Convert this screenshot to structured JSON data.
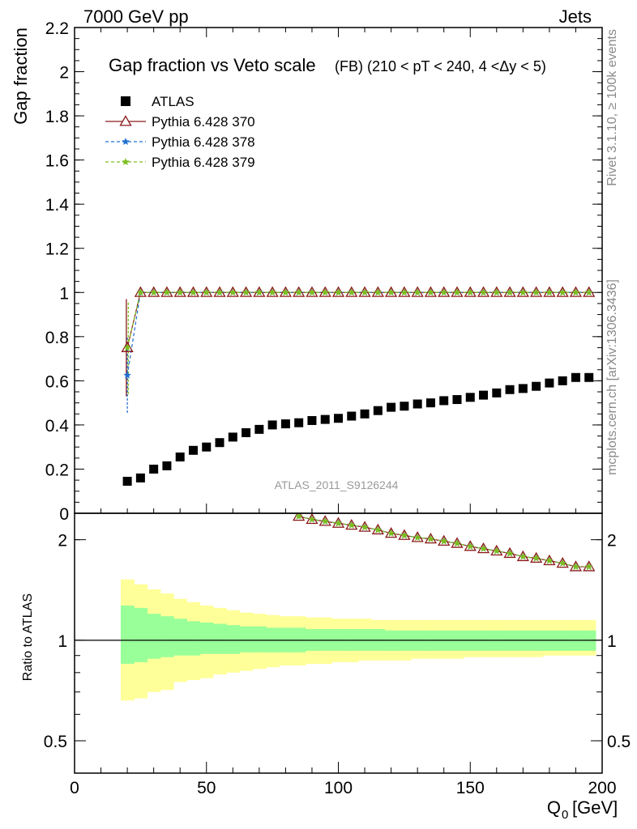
{
  "header": {
    "left": "7000 GeV pp",
    "right": "Jets"
  },
  "side": {
    "rivet": "Rivet 3.1.10, ≥ 100k events",
    "mcplots": "mcplots.cern.ch [arXiv:1306.3436]"
  },
  "watermark": "ATLAS_2011_S9126244",
  "chart_data": [
    {
      "type": "scatter",
      "title": "Gap fraction vs Veto scale",
      "subtitle": "(FB) (210 < pT < 240, 4 <Δy < 5)",
      "xlabel": "",
      "ylabel": "Gap fraction",
      "xlim": [
        0,
        200
      ],
      "ylim": [
        0,
        2.2
      ],
      "y_ticks": [
        "0",
        "0.2",
        "0.4",
        "0.6",
        "0.8",
        "1",
        "1.2",
        "1.4",
        "1.6",
        "1.8",
        "2",
        "2.2"
      ],
      "legend_position": "top-left",
      "series": [
        {
          "name": "ATLAS",
          "color": "#000000",
          "marker": "square",
          "x": [
            20,
            25,
            30,
            35,
            40,
            45,
            50,
            55,
            60,
            65,
            70,
            75,
            80,
            85,
            90,
            95,
            100,
            105,
            110,
            115,
            120,
            125,
            130,
            135,
            140,
            145,
            150,
            155,
            160,
            165,
            170,
            175,
            180,
            185,
            190,
            195
          ],
          "y": [
            0.145,
            0.16,
            0.2,
            0.215,
            0.255,
            0.285,
            0.3,
            0.32,
            0.345,
            0.365,
            0.38,
            0.4,
            0.405,
            0.41,
            0.42,
            0.425,
            0.43,
            0.44,
            0.45,
            0.465,
            0.48,
            0.485,
            0.495,
            0.5,
            0.51,
            0.515,
            0.525,
            0.535,
            0.545,
            0.56,
            0.565,
            0.575,
            0.59,
            0.6,
            0.615,
            0.615
          ]
        },
        {
          "name": "Pythia 6.428 370",
          "color": "#8b1a1a",
          "marker": "open-triangle",
          "x": [
            20,
            25,
            30,
            35,
            40,
            45,
            50,
            55,
            60,
            65,
            70,
            75,
            80,
            85,
            90,
            95,
            100,
            105,
            110,
            115,
            120,
            125,
            130,
            135,
            140,
            145,
            150,
            155,
            160,
            165,
            170,
            175,
            180,
            185,
            190,
            195
          ],
          "y": [
            0.75,
            1,
            1,
            1,
            1,
            1,
            1,
            1,
            1,
            1,
            1,
            1,
            1,
            1,
            1,
            1,
            1,
            1,
            1,
            1,
            1,
            1,
            1,
            1,
            1,
            1,
            1,
            1,
            1,
            1,
            1,
            1,
            1,
            1,
            1,
            1
          ],
          "err": [
            0.22
          ]
        },
        {
          "name": "Pythia 6.428 378",
          "color": "#1f6fd0",
          "marker": "star",
          "x": [
            20,
            25,
            30,
            35,
            40,
            45,
            50,
            55,
            60,
            65,
            70,
            75,
            80,
            85,
            90,
            95,
            100,
            105,
            110,
            115,
            120,
            125,
            130,
            135,
            140,
            145,
            150,
            155,
            160,
            165,
            170,
            175,
            180,
            185,
            190,
            195
          ],
          "y": [
            0.625,
            1,
            1,
            1,
            1,
            1,
            1,
            1,
            1,
            1,
            1,
            1,
            1,
            1,
            1,
            1,
            1,
            1,
            1,
            1,
            1,
            1,
            1,
            1,
            1,
            1,
            1,
            1,
            1,
            1,
            1,
            1,
            1,
            1,
            1,
            1
          ],
          "err": [
            0.17
          ]
        },
        {
          "name": "Pythia 6.428 379",
          "color": "#7dbe1e",
          "marker": "star",
          "x": [
            20,
            25,
            30,
            35,
            40,
            45,
            50,
            55,
            60,
            65,
            70,
            75,
            80,
            85,
            90,
            95,
            100,
            105,
            110,
            115,
            120,
            125,
            130,
            135,
            140,
            145,
            150,
            155,
            160,
            165,
            170,
            175,
            180,
            185,
            190,
            195
          ],
          "y": [
            0.75,
            1,
            1,
            1,
            1,
            1,
            1,
            1,
            1,
            1,
            1,
            1,
            1,
            1,
            1,
            1,
            1,
            1,
            1,
            1,
            1,
            1,
            1,
            1,
            1,
            1,
            1,
            1,
            1,
            1,
            1,
            1,
            1,
            1,
            1,
            1
          ],
          "err": [
            0.21
          ]
        }
      ]
    },
    {
      "type": "scatter",
      "xlabel": "Q0 [GeV]",
      "ylabel": "Ratio to ATLAS",
      "xlim": [
        0,
        200
      ],
      "ylim": [
        0.4,
        2.4
      ],
      "log_y": true,
      "x_ticks": [
        "0",
        "50",
        "100",
        "150",
        "200"
      ],
      "y_ticks": [
        "0.5",
        "1",
        "2"
      ],
      "reference_line": 1,
      "bands": {
        "x_edges": [
          17.5,
          22.5,
          27.5,
          32.5,
          37.5,
          42.5,
          47.5,
          52.5,
          57.5,
          62.5,
          67.5,
          72.5,
          77.5,
          82.5,
          87.5,
          92.5,
          97.5,
          102.5,
          107.5,
          112.5,
          117.5,
          122.5,
          127.5,
          132.5,
          137.5,
          142.5,
          147.5,
          152.5,
          157.5,
          162.5,
          167.5,
          172.5,
          177.5,
          182.5,
          187.5,
          192.5,
          197.5
        ],
        "stat_low": [
          0.85,
          0.86,
          0.88,
          0.89,
          0.9,
          0.9,
          0.91,
          0.91,
          0.91,
          0.92,
          0.92,
          0.92,
          0.92,
          0.92,
          0.93,
          0.93,
          0.93,
          0.93,
          0.93,
          0.93,
          0.93,
          0.93,
          0.93,
          0.93,
          0.93,
          0.93,
          0.93,
          0.93,
          0.93,
          0.93,
          0.93,
          0.93,
          0.93,
          0.93,
          0.93,
          0.93
        ],
        "stat_high": [
          1.27,
          1.25,
          1.2,
          1.18,
          1.16,
          1.14,
          1.13,
          1.12,
          1.11,
          1.1,
          1.1,
          1.09,
          1.09,
          1.09,
          1.08,
          1.08,
          1.08,
          1.08,
          1.08,
          1.08,
          1.07,
          1.07,
          1.07,
          1.07,
          1.07,
          1.07,
          1.07,
          1.07,
          1.07,
          1.07,
          1.07,
          1.07,
          1.07,
          1.07,
          1.07,
          1.07
        ],
        "total_low": [
          0.66,
          0.67,
          0.7,
          0.71,
          0.75,
          0.76,
          0.77,
          0.79,
          0.8,
          0.81,
          0.82,
          0.83,
          0.84,
          0.84,
          0.85,
          0.85,
          0.86,
          0.86,
          0.87,
          0.87,
          0.87,
          0.87,
          0.88,
          0.88,
          0.88,
          0.88,
          0.89,
          0.89,
          0.89,
          0.89,
          0.89,
          0.89,
          0.9,
          0.9,
          0.9,
          0.9
        ],
        "total_high": [
          1.52,
          1.47,
          1.42,
          1.38,
          1.33,
          1.3,
          1.27,
          1.25,
          1.23,
          1.21,
          1.2,
          1.19,
          1.18,
          1.18,
          1.17,
          1.17,
          1.16,
          1.16,
          1.16,
          1.15,
          1.15,
          1.15,
          1.15,
          1.15,
          1.15,
          1.15,
          1.15,
          1.15,
          1.15,
          1.15,
          1.15,
          1.15,
          1.15,
          1.15,
          1.15,
          1.15
        ]
      },
      "series": [
        {
          "name": "Pythia 6.428 370",
          "color": "#8b1a1a",
          "marker": "open-triangle",
          "x": [
            85,
            90,
            95,
            100,
            105,
            110,
            115,
            120,
            125,
            130,
            135,
            140,
            145,
            150,
            155,
            160,
            165,
            170,
            175,
            180,
            185,
            190,
            195
          ],
          "y": [
            2.35,
            2.3,
            2.27,
            2.24,
            2.21,
            2.18,
            2.14,
            2.09,
            2.06,
            2.03,
            2.01,
            1.98,
            1.95,
            1.91,
            1.88,
            1.85,
            1.82,
            1.78,
            1.76,
            1.73,
            1.7,
            1.66,
            1.66
          ]
        },
        {
          "name": "Pythia 6.428 378",
          "color": "#1f6fd0",
          "marker": "star",
          "x": [
            85,
            90,
            95,
            100,
            105,
            110,
            115,
            120,
            125,
            130,
            135,
            140,
            145,
            150,
            155,
            160,
            165,
            170,
            175,
            180,
            185,
            190,
            195
          ],
          "y": [
            2.35,
            2.3,
            2.27,
            2.24,
            2.21,
            2.18,
            2.14,
            2.09,
            2.06,
            2.03,
            2.01,
            1.98,
            1.95,
            1.91,
            1.88,
            1.85,
            1.82,
            1.78,
            1.76,
            1.73,
            1.7,
            1.66,
            1.66
          ]
        },
        {
          "name": "Pythia 6.428 379",
          "color": "#7dbe1e",
          "marker": "star",
          "x": [
            85,
            90,
            95,
            100,
            105,
            110,
            115,
            120,
            125,
            130,
            135,
            140,
            145,
            150,
            155,
            160,
            165,
            170,
            175,
            180,
            185,
            190,
            195
          ],
          "y": [
            2.35,
            2.3,
            2.27,
            2.24,
            2.21,
            2.18,
            2.14,
            2.09,
            2.06,
            2.03,
            2.01,
            1.98,
            1.95,
            1.91,
            1.88,
            1.85,
            1.82,
            1.78,
            1.76,
            1.73,
            1.7,
            1.66,
            1.66
          ]
        }
      ]
    }
  ]
}
